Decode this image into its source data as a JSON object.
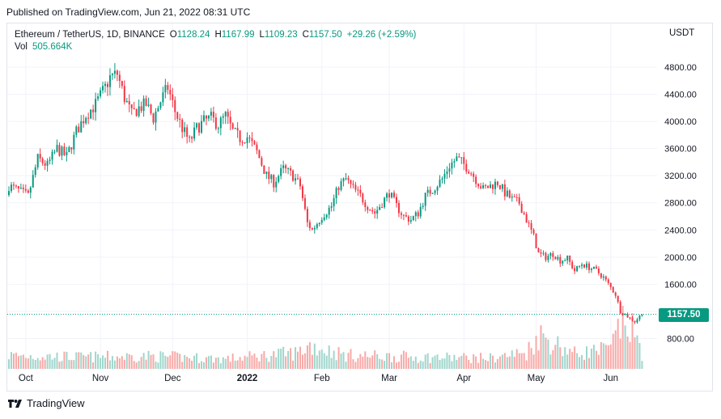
{
  "header": {
    "published": "Published on TradingView.com, Jun 21, 2022 08:31 UTC"
  },
  "legend": {
    "symbol": "Ethereum / TetherUS, 1D, BINANCE",
    "open_label": "O",
    "open": "1128.24",
    "high_label": "H",
    "high": "1167.99",
    "low_label": "L",
    "low": "1109.23",
    "close_label": "C",
    "close": "1157.50",
    "change": "+29.26 (+2.59%)",
    "vol_label": "Vol",
    "vol_value": "505.664K"
  },
  "price_scale": {
    "currency": "USDT",
    "last_price_label": "1157.50"
  },
  "footer": {
    "brand": "TradingView"
  },
  "colors": {
    "up": "#089981",
    "down": "#f23645",
    "up_volume": "#9fd6cc",
    "down_volume": "#f7a9a7",
    "grid": "#f0f3fa",
    "axis_text": "#131722"
  },
  "chart_data": {
    "type": "candlestick",
    "title": "Ethereum / TetherUS, 1D, BINANCE",
    "ylabel": "USDT",
    "ylim": [
      400,
      5000
    ],
    "y_ticks": [
      800,
      1200,
      1600,
      2000,
      2400,
      2800,
      3200,
      3600,
      4000,
      4400,
      4800
    ],
    "y_tick_labels": [
      "800.00",
      "1200.00",
      "1600.00",
      "2000.00",
      "2400.00",
      "2800.00",
      "3200.00",
      "3600.00",
      "4000.00",
      "4400.00",
      "4800.00"
    ],
    "x_tick_labels": [
      "Oct",
      "Nov",
      "Dec",
      "2022",
      "Feb",
      "Mar",
      "Apr",
      "May",
      "Jun"
    ],
    "x_tick_days": [
      7,
      38,
      68,
      99,
      130,
      158,
      189,
      219,
      250
    ],
    "first_day": "Sep 24, 2021",
    "grid": true,
    "last_price": 1157.5,
    "close_anchors": [
      [
        0,
        3050
      ],
      [
        4,
        2980
      ],
      [
        8,
        2900
      ],
      [
        12,
        3450
      ],
      [
        16,
        3350
      ],
      [
        20,
        3600
      ],
      [
        24,
        3480
      ],
      [
        28,
        3850
      ],
      [
        32,
        4100
      ],
      [
        36,
        4250
      ],
      [
        40,
        4500
      ],
      [
        42,
        4650
      ],
      [
        45,
        4700
      ],
      [
        48,
        4350
      ],
      [
        51,
        4100
      ],
      [
        54,
        4200
      ],
      [
        57,
        4250
      ],
      [
        60,
        4050
      ],
      [
        63,
        4300
      ],
      [
        66,
        4500
      ],
      [
        69,
        4150
      ],
      [
        72,
        3900
      ],
      [
        75,
        3700
      ],
      [
        78,
        3900
      ],
      [
        81,
        4000
      ],
      [
        84,
        4050
      ],
      [
        87,
        3950
      ],
      [
        90,
        4080
      ],
      [
        93,
        3850
      ],
      [
        96,
        3750
      ],
      [
        99,
        3770
      ],
      [
        103,
        3550
      ],
      [
        107,
        3200
      ],
      [
        110,
        3100
      ],
      [
        114,
        3300
      ],
      [
        118,
        3200
      ],
      [
        121,
        3050
      ],
      [
        124,
        2500
      ],
      [
        126,
        2400
      ],
      [
        130,
        2600
      ],
      [
        134,
        2750
      ],
      [
        137,
        3050
      ],
      [
        140,
        3150
      ],
      [
        142,
        3050
      ],
      [
        146,
        2900
      ],
      [
        149,
        2750
      ],
      [
        152,
        2650
      ],
      [
        155,
        2800
      ],
      [
        158,
        2950
      ],
      [
        161,
        2750
      ],
      [
        164,
        2600
      ],
      [
        167,
        2550
      ],
      [
        170,
        2650
      ],
      [
        173,
        2900
      ],
      [
        176,
        3000
      ],
      [
        180,
        3150
      ],
      [
        183,
        3350
      ],
      [
        186,
        3450
      ],
      [
        188,
        3400
      ],
      [
        191,
        3300
      ],
      [
        194,
        3150
      ],
      [
        197,
        3000
      ],
      [
        200,
        3050
      ],
      [
        203,
        3100
      ],
      [
        206,
        2950
      ],
      [
        209,
        2850
      ],
      [
        212,
        2800
      ],
      [
        215,
        2550
      ],
      [
        218,
        2300
      ],
      [
        220,
        2050
      ],
      [
        223,
        2000
      ],
      [
        226,
        2050
      ],
      [
        229,
        1950
      ],
      [
        232,
        1980
      ],
      [
        235,
        1800
      ],
      [
        238,
        1900
      ],
      [
        241,
        1850
      ],
      [
        244,
        1800
      ],
      [
        247,
        1700
      ],
      [
        250,
        1550
      ],
      [
        252,
        1450
      ],
      [
        254,
        1200
      ],
      [
        256,
        1150
      ],
      [
        258,
        1100
      ],
      [
        260,
        1050
      ],
      [
        262,
        1128
      ],
      [
        263,
        1157.5
      ]
    ],
    "volume_scale_max": 700,
    "volume_anchors": [
      [
        0,
        150
      ],
      [
        30,
        130
      ],
      [
        60,
        140
      ],
      [
        90,
        110
      ],
      [
        120,
        180
      ],
      [
        125,
        260
      ],
      [
        140,
        150
      ],
      [
        170,
        130
      ],
      [
        200,
        120
      ],
      [
        215,
        180
      ],
      [
        220,
        380
      ],
      [
        235,
        170
      ],
      [
        250,
        220
      ],
      [
        255,
        560
      ],
      [
        260,
        380
      ],
      [
        263,
        160
      ]
    ]
  }
}
